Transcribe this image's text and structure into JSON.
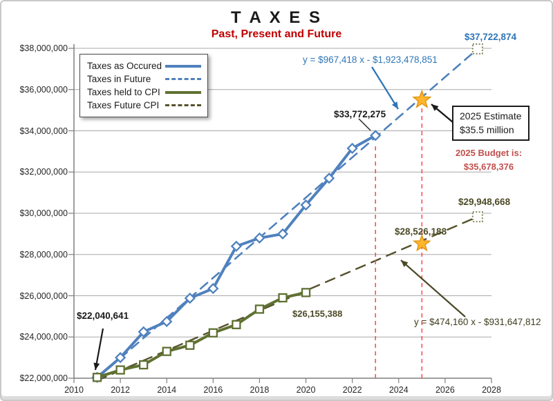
{
  "chart": {
    "title": "T A X E S",
    "subtitle": "Past, Present and Future"
  },
  "chart_data": {
    "type": "line",
    "title": "T A X E S",
    "subtitle": "Past, Present and Future",
    "xlabel": "",
    "ylabel": "",
    "xlim": [
      2010,
      2028
    ],
    "x_tick_step": 2,
    "ylim": [
      22000000,
      38000000
    ],
    "y_tick_step": 2000000,
    "grid": "horizontal",
    "legend_position": "inside-top-left",
    "series": [
      {
        "name": "Taxes as Occured",
        "style": "solid",
        "marker": "diamond",
        "color": "#4F81BD",
        "width": 4,
        "x": [
          2011,
          2012,
          2013,
          2014,
          2015,
          2016,
          2017,
          2018,
          2019,
          2020,
          2021,
          2022,
          2023
        ],
        "values": [
          22040641,
          23000000,
          24250000,
          24750000,
          25880000,
          26350000,
          28400000,
          28800000,
          29000000,
          30400000,
          31700000,
          33150000,
          33772275
        ]
      },
      {
        "name": "Taxes in Future",
        "style": "dashed",
        "marker": "dotted-square-end",
        "color": "#4F81BD",
        "width": 2.6,
        "dash": "13 9",
        "x": [
          2011,
          2027.4
        ],
        "values": [
          22000000,
          37970000
        ],
        "equation": "y = $967,418 x - $1,923,478,851",
        "end_label": "$37,722,874"
      },
      {
        "name": "Taxes held to CPI",
        "style": "solid",
        "marker": "square",
        "color": "#5F7131",
        "width": 4,
        "x": [
          2011,
          2012,
          2013,
          2014,
          2015,
          2016,
          2017,
          2018,
          2019,
          2020
        ],
        "values": [
          22040641,
          22400000,
          22650000,
          23300000,
          23600000,
          24200000,
          24600000,
          25350000,
          25900000,
          26155388
        ]
      },
      {
        "name": "Taxes Future CPI",
        "style": "dashed",
        "marker": "dotted-square-end",
        "color": "#55522D",
        "width": 2.4,
        "dash": "14 10",
        "x": [
          2011,
          2027.4
        ],
        "values": [
          21890000,
          29830000
        ],
        "equation": "y = $474,160 x - $931,647,812",
        "end_label": "$29,948,668"
      }
    ],
    "stars": [
      {
        "x": 2025,
        "value": 35500000,
        "label": "2025 Estimate $35.5 million"
      },
      {
        "x": 2025,
        "value": 28526188,
        "label": "$28,526,188"
      }
    ],
    "vlines": [
      {
        "x": 2023,
        "from": 22000000,
        "to": 33400000,
        "color": "#FF4D4A"
      },
      {
        "x": 2025,
        "from": 22000000,
        "to": 35250000,
        "color": "#FF4D4A"
      }
    ],
    "star_fill": "#FFB52E",
    "star_stroke": "#E0940B",
    "grid_color": "#A8A8A8",
    "axis_color": "#7F7F7F"
  },
  "annotations": {
    "blue_end_value": "$37,722,874",
    "point_2023_label": "$33,772,275",
    "estimate_box_line1": "2025 Estimate",
    "estimate_box_line2": "$35.5 million",
    "budget_line1": "2025 Budget is:",
    "budget_line2": "$35,678,376",
    "olive_end_value": "$29,948,668",
    "olive_2025_value": "$28,526,188",
    "cpi_2020_value": "$26,155,388",
    "start_value": "$22,040,641"
  }
}
